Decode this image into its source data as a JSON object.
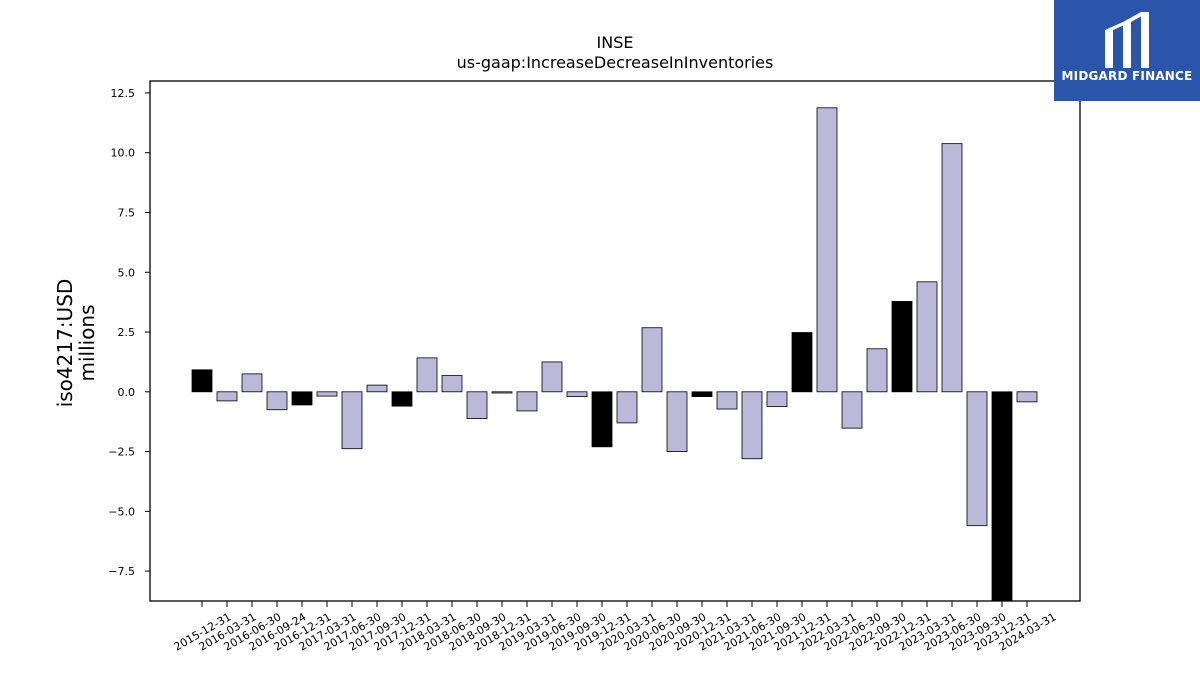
{
  "brand": {
    "name": "MIDGARD FINANCE",
    "background_color": "#2b55ab"
  },
  "chart_data": {
    "type": "bar",
    "title": "INSE",
    "subtitle": "us-gaap:IncreaseDecreaseInInventories",
    "ylabel_line1": "iso4217:USD",
    "ylabel_line2": "millions",
    "ylim": [
      -8.75,
      13.0
    ],
    "yticks": [
      12.5,
      10.0,
      7.5,
      5.0,
      2.5,
      0.0,
      -2.5,
      -5.0,
      -7.5
    ],
    "ytick_labels": [
      "12.5",
      "10.0",
      "7.5",
      "5.0",
      "2.5",
      "0.0",
      "−2.5",
      "−5.0",
      "−7.5"
    ],
    "grid": false,
    "colors": {
      "annual": "#000000",
      "quarterly": "#bcb8da"
    },
    "categories": [
      "2015-12-31",
      "2016-03-31",
      "2016-06-30",
      "2016-09-24",
      "2016-12-31",
      "2017-03-31",
      "2017-06-30",
      "2017-09-30",
      "2017-12-31",
      "2018-03-31",
      "2018-06-30",
      "2018-09-30",
      "2018-12-31",
      "2019-03-31",
      "2019-06-30",
      "2019-09-30",
      "2019-12-31",
      "2020-03-31",
      "2020-06-30",
      "2020-09-30",
      "2020-12-31",
      "2021-03-31",
      "2021-06-30",
      "2021-09-30",
      "2021-12-31",
      "2022-03-31",
      "2022-06-30",
      "2022-09-30",
      "2022-12-31",
      "2023-03-31",
      "2023-06-30",
      "2023-09-30",
      "2023-12-31",
      "2024-03-31"
    ],
    "values": [
      0.92,
      -0.38,
      0.75,
      -0.75,
      -0.55,
      -0.18,
      -2.38,
      0.28,
      -0.6,
      1.42,
      0.68,
      -1.12,
      -0.05,
      -0.8,
      1.25,
      -0.2,
      -2.3,
      -1.3,
      2.68,
      -2.5,
      -0.2,
      -0.72,
      -2.8,
      -0.62,
      2.48,
      11.88,
      -1.52,
      1.8,
      3.78,
      4.6,
      10.38,
      -5.6,
      -8.75,
      -0.42
    ],
    "kind": [
      "annual",
      "quarterly",
      "quarterly",
      "quarterly",
      "annual",
      "quarterly",
      "quarterly",
      "quarterly",
      "annual",
      "quarterly",
      "quarterly",
      "quarterly",
      "quarterly",
      "quarterly",
      "quarterly",
      "quarterly",
      "annual",
      "quarterly",
      "quarterly",
      "quarterly",
      "annual",
      "quarterly",
      "quarterly",
      "quarterly",
      "annual",
      "quarterly",
      "quarterly",
      "quarterly",
      "annual",
      "quarterly",
      "quarterly",
      "quarterly",
      "annual",
      "quarterly"
    ]
  }
}
